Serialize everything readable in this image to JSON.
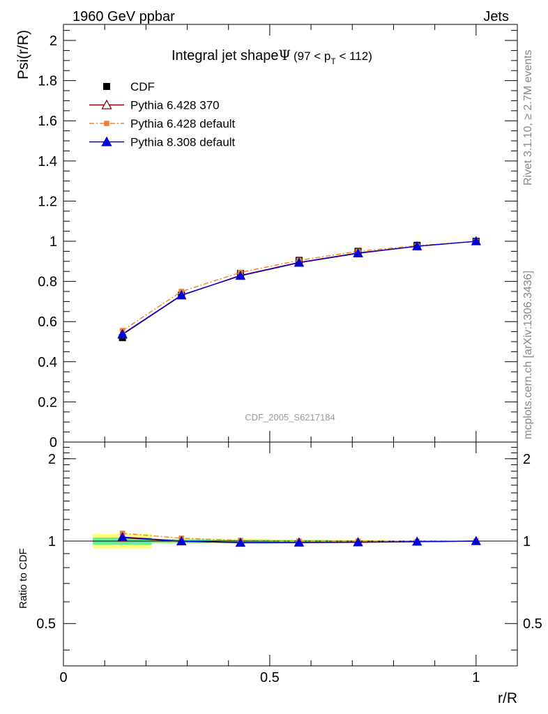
{
  "header": {
    "left": "1960 GeV ppbar",
    "right": "Jets"
  },
  "title": {
    "main": "Integral jet shape",
    "symbol": "Ψ",
    "range_pre": "(97 < p",
    "range_sub": "T",
    "range_post": " < 112)"
  },
  "side_text": {
    "rivet": "Rivet 3.1.10, ≥ 2.7M events",
    "mcplots": "mcplots.cern.ch [arXiv:1306.3436]"
  },
  "analysis_label": "CDF_2005_S6217184",
  "chart_data": {
    "type": "line",
    "xlabel": "r/R",
    "ylabel": "Psi(r/R)",
    "ratio_ylabel": "Ratio to CDF",
    "xlim": [
      0,
      1.1
    ],
    "ylim": [
      0,
      2.08
    ],
    "ratio_ylim": [
      0.35,
      2.3
    ],
    "x_ticks": [
      {
        "v": 0,
        "label": "0"
      },
      {
        "v": 0.5,
        "label": "0.5"
      },
      {
        "v": 1,
        "label": "1"
      }
    ],
    "y_ticks": [
      {
        "v": 0,
        "label": "0"
      },
      {
        "v": 0.2,
        "label": "0.2"
      },
      {
        "v": 0.4,
        "label": "0.4"
      },
      {
        "v": 0.6,
        "label": "0.6"
      },
      {
        "v": 0.8,
        "label": "0.8"
      },
      {
        "v": 1.0,
        "label": "1"
      },
      {
        "v": 1.2,
        "label": "1.2"
      },
      {
        "v": 1.4,
        "label": "1.4"
      },
      {
        "v": 1.6,
        "label": "1.6"
      },
      {
        "v": 1.8,
        "label": "1.8"
      },
      {
        "v": 2.0,
        "label": "2"
      }
    ],
    "ratio_y_ticks": [
      {
        "v": 0.5,
        "label": "0.5"
      },
      {
        "v": 1,
        "label": "1"
      },
      {
        "v": 2,
        "label": "2"
      }
    ],
    "x": [
      0.143,
      0.286,
      0.429,
      0.571,
      0.714,
      0.857,
      1.0
    ],
    "bin_edges": [
      0.071,
      0.214,
      0.357,
      0.5,
      0.643,
      0.786,
      0.929,
      1.071
    ],
    "data": {
      "name": "CDF",
      "values": [
        0.52,
        0.732,
        0.84,
        0.905,
        0.95,
        0.98,
        1.0
      ],
      "stat_rel": [
        0.03,
        0.015,
        0.01,
        0.008,
        0.005,
        0.004,
        0.0
      ],
      "tot_rel": [
        0.06,
        0.02,
        0.02,
        0.015,
        0.01,
        0.006,
        0.0
      ]
    },
    "series": [
      {
        "name": "Pythia 6.428 370",
        "color": "#8b0000",
        "marker": "open-triangle",
        "dash": "solid",
        "values": [
          0.535,
          0.73,
          0.83,
          0.895,
          0.942,
          0.975,
          1.0
        ]
      },
      {
        "name": "Pythia 6.428 default",
        "color": "#f08030",
        "marker": "square",
        "dash": "dashdot",
        "values": [
          0.555,
          0.75,
          0.845,
          0.905,
          0.95,
          0.978,
          1.0
        ]
      },
      {
        "name": "Pythia 8.308 default",
        "color": "#0000dd",
        "marker": "triangle",
        "dash": "solid",
        "values": [
          0.538,
          0.732,
          0.828,
          0.893,
          0.94,
          0.975,
          1.0
        ]
      }
    ],
    "legend_position": "top-left"
  }
}
